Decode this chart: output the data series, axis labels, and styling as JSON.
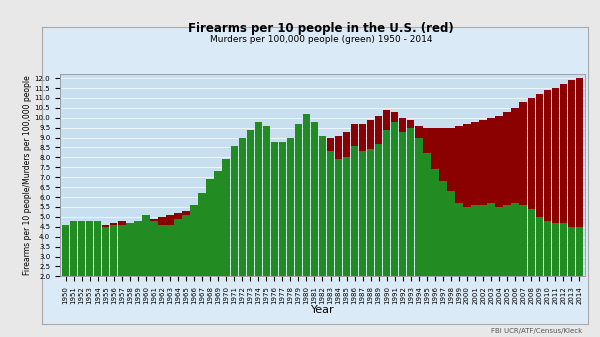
{
  "title": "Firearms per 10 people in the U.S. (red)",
  "subtitle": "Murders per 100,000 people (green) 1950 - 2014",
  "xlabel": "Year",
  "ylabel": "Firearms per 10 people/Murders per 100,000 people",
  "source": "FBI UCR/ATF/Census/Kleck",
  "years": [
    1950,
    1951,
    1952,
    1953,
    1954,
    1955,
    1956,
    1957,
    1958,
    1959,
    1960,
    1961,
    1962,
    1963,
    1964,
    1965,
    1966,
    1967,
    1968,
    1969,
    1970,
    1971,
    1972,
    1973,
    1974,
    1975,
    1976,
    1977,
    1978,
    1979,
    1980,
    1981,
    1982,
    1983,
    1984,
    1985,
    1986,
    1987,
    1988,
    1989,
    1990,
    1991,
    1992,
    1993,
    1994,
    1995,
    1996,
    1997,
    1998,
    1999,
    2000,
    2001,
    2002,
    2003,
    2004,
    2005,
    2006,
    2007,
    2008,
    2009,
    2010,
    2011,
    2012,
    2013,
    2014
  ],
  "firearms": [
    4.5,
    4.6,
    4.7,
    4.6,
    4.5,
    4.6,
    4.7,
    4.8,
    4.7,
    4.8,
    4.9,
    4.9,
    5.0,
    5.1,
    5.2,
    5.3,
    5.5,
    5.7,
    6.0,
    6.2,
    6.4,
    6.6,
    6.8,
    7.1,
    7.4,
    7.6,
    7.6,
    7.7,
    7.9,
    8.4,
    8.8,
    9.0,
    9.0,
    9.0,
    9.1,
    9.3,
    9.7,
    9.7,
    9.9,
    10.1,
    10.4,
    10.3,
    10.0,
    9.9,
    9.6,
    9.5,
    9.5,
    9.5,
    9.5,
    9.6,
    9.7,
    9.8,
    9.9,
    10.0,
    10.1,
    10.3,
    10.5,
    10.8,
    11.0,
    11.2,
    11.4,
    11.5,
    11.7,
    11.9,
    12.0
  ],
  "murders": [
    4.6,
    4.8,
    4.8,
    4.8,
    4.8,
    4.5,
    4.6,
    4.6,
    4.7,
    4.8,
    5.1,
    4.8,
    4.6,
    4.6,
    4.9,
    5.1,
    5.6,
    6.2,
    6.9,
    7.3,
    7.9,
    8.6,
    9.0,
    9.4,
    9.8,
    9.6,
    8.8,
    8.8,
    9.0,
    9.7,
    10.2,
    9.8,
    9.1,
    8.3,
    7.9,
    8.0,
    8.6,
    8.3,
    8.4,
    8.7,
    9.4,
    9.8,
    9.3,
    9.5,
    9.0,
    8.2,
    7.4,
    6.8,
    6.3,
    5.7,
    5.5,
    5.6,
    5.6,
    5.7,
    5.5,
    5.6,
    5.7,
    5.6,
    5.4,
    5.0,
    4.8,
    4.7,
    4.7,
    4.5,
    4.5
  ],
  "firearms_color": "#8B0000",
  "murders_color": "#228B22",
  "outer_bg": "#e8e8e8",
  "inner_bg": "#dbeaf7",
  "plot_bg": "#c8dff0",
  "ylim": [
    2.0,
    12.2
  ],
  "yticks": [
    2.0,
    2.5,
    3.0,
    3.5,
    4.0,
    4.5,
    5.0,
    5.5,
    6.0,
    6.5,
    7.0,
    7.5,
    8.0,
    8.5,
    9.0,
    9.5,
    10.0,
    10.5,
    11.0,
    11.5,
    12.0
  ],
  "title_fontsize": 8.5,
  "subtitle_fontsize": 6.5,
  "xlabel_fontsize": 8,
  "ylabel_fontsize": 5.5,
  "tick_fontsize": 5,
  "source_fontsize": 5
}
